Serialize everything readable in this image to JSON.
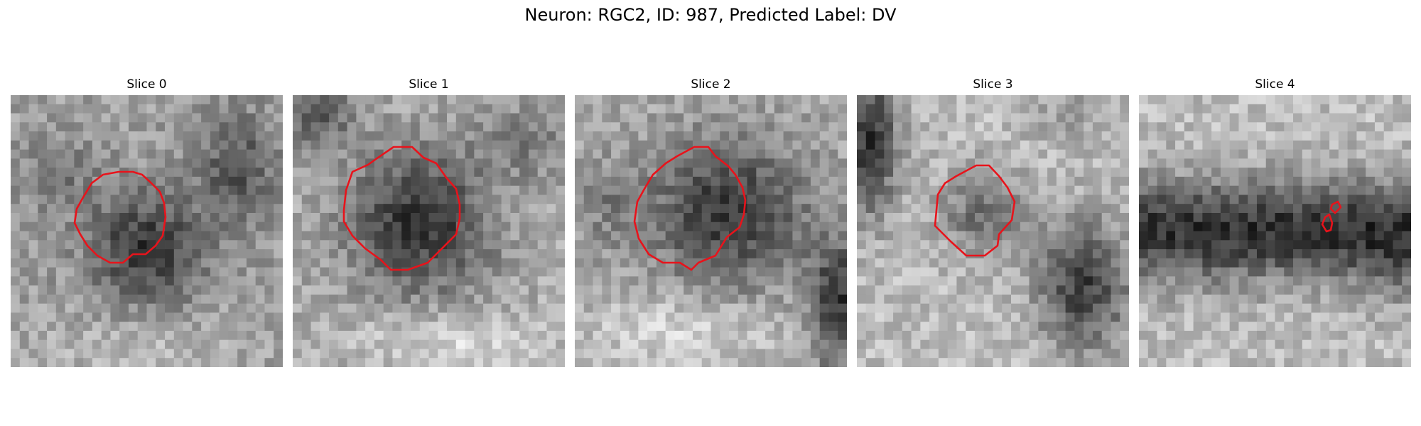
{
  "figure": {
    "title": "Neuron: RGC2, ID: 987, Predicted Label: DV",
    "contour_color": "#e8131b"
  },
  "panels": [
    {
      "title": "Slice 0"
    },
    {
      "title": "Slice 1"
    },
    {
      "title": "Slice 2"
    },
    {
      "title": "Slice 3"
    },
    {
      "title": "Slice 4"
    }
  ]
}
